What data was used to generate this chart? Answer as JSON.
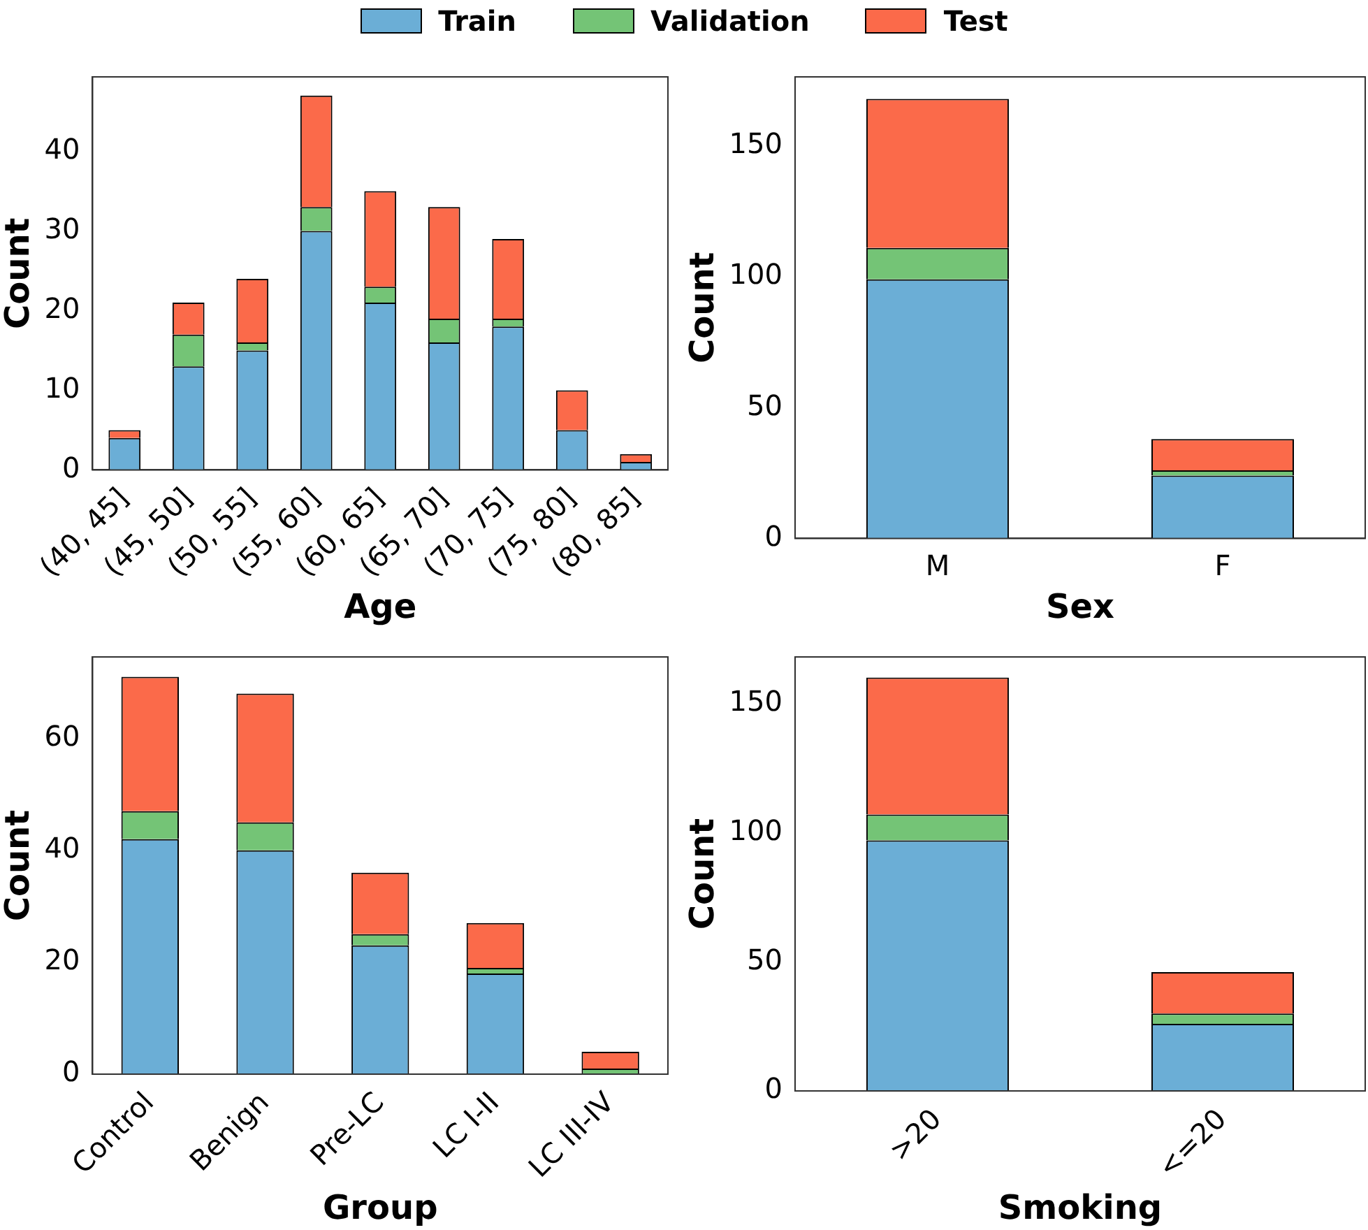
{
  "chart_data": [
    {
      "type": "bar",
      "stacked": true,
      "legend": "top",
      "xlabel": "Age",
      "ylabel": "Count",
      "categories": [
        "(40, 45]",
        "(45, 50]",
        "(50, 55]",
        "(55, 60]",
        "(60, 65]",
        "(65, 70]",
        "(70, 75]",
        "(75, 80]",
        "(80, 85]"
      ],
      "ylim": [
        0,
        49.35
      ],
      "yticks": [
        0,
        10,
        20,
        30,
        40
      ],
      "series": [
        {
          "name": "Train",
          "color": "#6baed6",
          "values": [
            4,
            13,
            15,
            30,
            21,
            16,
            18,
            5,
            1
          ]
        },
        {
          "name": "Validation",
          "color": "#74c476",
          "values": [
            0,
            4,
            1,
            3,
            2,
            3,
            1,
            0,
            0
          ]
        },
        {
          "name": "Test",
          "color": "#fb6a4a",
          "values": [
            1,
            4,
            8,
            14,
            12,
            14,
            10,
            5,
            1
          ]
        }
      ]
    },
    {
      "type": "bar",
      "stacked": true,
      "xlabel": "Sex",
      "ylabel": "Count",
      "categories": [
        "M",
        "F"
      ],
      "ylim": [
        0,
        176.4
      ],
      "yticks": [
        0,
        50,
        100,
        150
      ],
      "series": [
        {
          "color": "#6baed6",
          "values": [
            99,
            24
          ]
        },
        {
          "color": "#74c476",
          "values": [
            12,
            2
          ]
        },
        {
          "color": "#fb6a4a",
          "values": [
            57,
            12
          ]
        }
      ]
    },
    {
      "type": "bar",
      "stacked": true,
      "xlabel": "Group",
      "ylabel": "Count",
      "categories": [
        "Control",
        "Benign",
        "Pre-LC",
        "LC I-II",
        "LC III-IV"
      ],
      "ylim": [
        0,
        74.55
      ],
      "yticks": [
        0,
        20,
        40,
        60
      ],
      "series": [
        {
          "color": "#6baed6",
          "values": [
            42,
            40,
            23,
            18,
            0
          ]
        },
        {
          "color": "#74c476",
          "values": [
            5,
            5,
            2,
            1,
            1
          ]
        },
        {
          "color": "#fb6a4a",
          "values": [
            24,
            23,
            11,
            8,
            3
          ]
        }
      ]
    },
    {
      "type": "bar",
      "stacked": true,
      "xlabel": "Smoking",
      "ylabel": "Count",
      "categories": [
        ">20",
        "<=20"
      ],
      "ylim": [
        0,
        168
      ],
      "yticks": [
        0,
        50,
        100,
        150
      ],
      "series": [
        {
          "color": "#6baed6",
          "values": [
            97,
            26
          ]
        },
        {
          "color": "#74c476",
          "values": [
            10,
            4
          ]
        },
        {
          "color": "#fb6a4a",
          "values": [
            53,
            16
          ]
        }
      ]
    }
  ]
}
